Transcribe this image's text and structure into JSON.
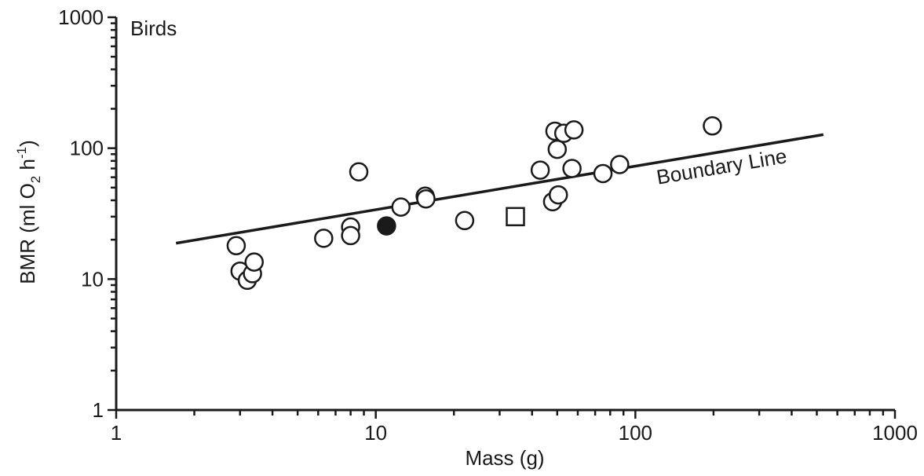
{
  "chart_data": {
    "type": "scatter",
    "title": "",
    "panel_label": "Birds",
    "xlabel": "Mass (g)",
    "ylabel_parts": [
      "BMR (ml O",
      "2",
      " h",
      "-1",
      ")"
    ],
    "x_scale": "log",
    "y_scale": "log",
    "xlim": [
      1,
      1000
    ],
    "ylim": [
      1,
      1000
    ],
    "x_tick_labels": [
      "1",
      "10",
      "100",
      "1000"
    ],
    "y_tick_labels": [
      "1",
      "10",
      "100",
      "1000"
    ],
    "grid": false,
    "series": [
      {
        "marker": "open-circle",
        "points": [
          {
            "x": 2.9,
            "y": 18
          },
          {
            "x": 3.0,
            "y": 11.5
          },
          {
            "x": 3.2,
            "y": 9.8
          },
          {
            "x": 3.35,
            "y": 11
          },
          {
            "x": 3.4,
            "y": 13.5
          },
          {
            "x": 6.3,
            "y": 20.5
          },
          {
            "x": 8.0,
            "y": 25
          },
          {
            "x": 8.0,
            "y": 21.5
          },
          {
            "x": 8.6,
            "y": 66
          },
          {
            "x": 12.5,
            "y": 35.5
          },
          {
            "x": 15.5,
            "y": 43
          },
          {
            "x": 15.6,
            "y": 41
          },
          {
            "x": 22,
            "y": 28
          },
          {
            "x": 43,
            "y": 68
          },
          {
            "x": 48,
            "y": 39
          },
          {
            "x": 49,
            "y": 135
          },
          {
            "x": 50,
            "y": 98
          },
          {
            "x": 50.5,
            "y": 44
          },
          {
            "x": 53,
            "y": 130
          },
          {
            "x": 57,
            "y": 70
          },
          {
            "x": 58,
            "y": 138
          },
          {
            "x": 75,
            "y": 64
          },
          {
            "x": 87,
            "y": 75
          },
          {
            "x": 198,
            "y": 148
          }
        ]
      },
      {
        "marker": "filled-circle",
        "points": [
          {
            "x": 11,
            "y": 25.5
          }
        ]
      },
      {
        "marker": "open-square",
        "points": [
          {
            "x": 34.5,
            "y": 30
          }
        ]
      }
    ],
    "boundary_line": {
      "label": "Boundary Line",
      "from": {
        "x": 1.7,
        "y": 18.8
      },
      "to": {
        "x": 530,
        "y": 127
      }
    }
  }
}
